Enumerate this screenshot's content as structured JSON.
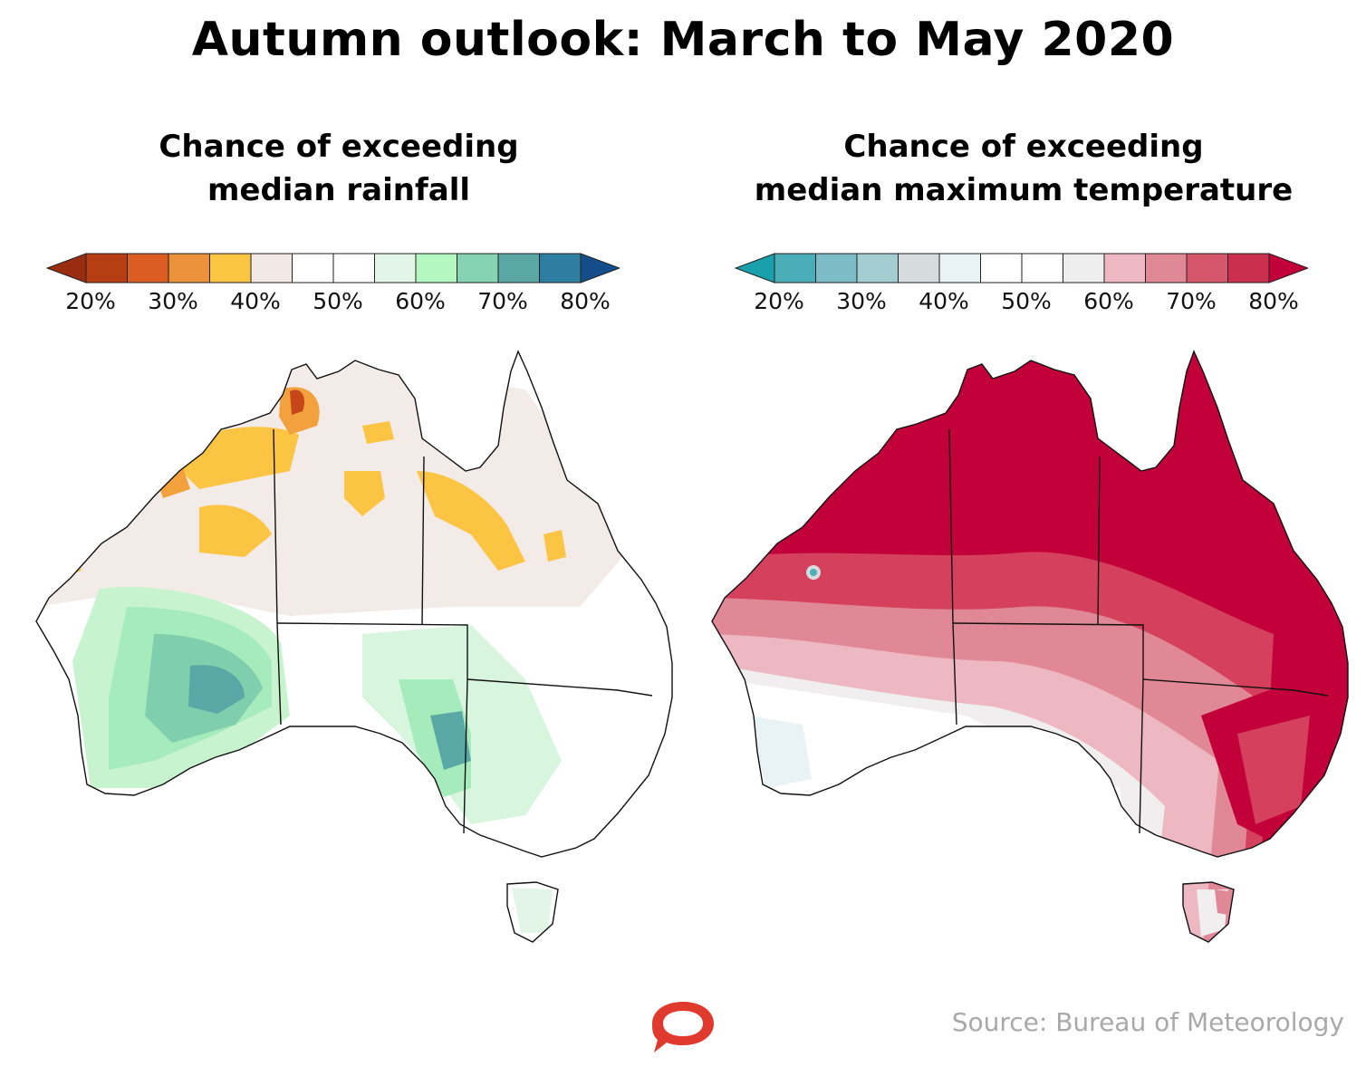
{
  "title": "Autumn outlook: March to May 2020",
  "panels": {
    "rainfall": {
      "title_line1": "Chance of exceeding",
      "title_line2": "median rainfall",
      "legend_ticks": [
        "20%",
        "30%",
        "40%",
        "50%",
        "60%",
        "70%",
        "80%"
      ],
      "legend_colors": [
        "#b63e12",
        "#db5d24",
        "#ec923a",
        "#fcc443",
        "#f2e9e6",
        "#ffffff",
        "#ffffff",
        "#e3f5e6",
        "#b5f7c1",
        "#86d3b1",
        "#5aa8a6",
        "#2d7ea0"
      ],
      "low_end_color": "#9a2c10",
      "high_end_color": "#134e8a"
    },
    "temperature": {
      "title_line1": "Chance of exceeding",
      "title_line2": "median maximum temperature",
      "legend_ticks": [
        "20%",
        "30%",
        "40%",
        "50%",
        "60%",
        "70%",
        "80%"
      ],
      "legend_colors": [
        "#4aadb7",
        "#7cbcc6",
        "#a4cdd1",
        "#d6dcdd",
        "#e9f2f5",
        "#ffffff",
        "#ffffff",
        "#eeeeee",
        "#edb8c1",
        "#e08895",
        "#d6566b",
        "#cb2f4e"
      ],
      "low_end_color": "#1aa0ac",
      "high_end_color": "#c2003a"
    }
  },
  "source": "Source: Bureau of Meteorology",
  "logo_icon": "speech-bubble-icon",
  "logo_color": "#e03a2f"
}
